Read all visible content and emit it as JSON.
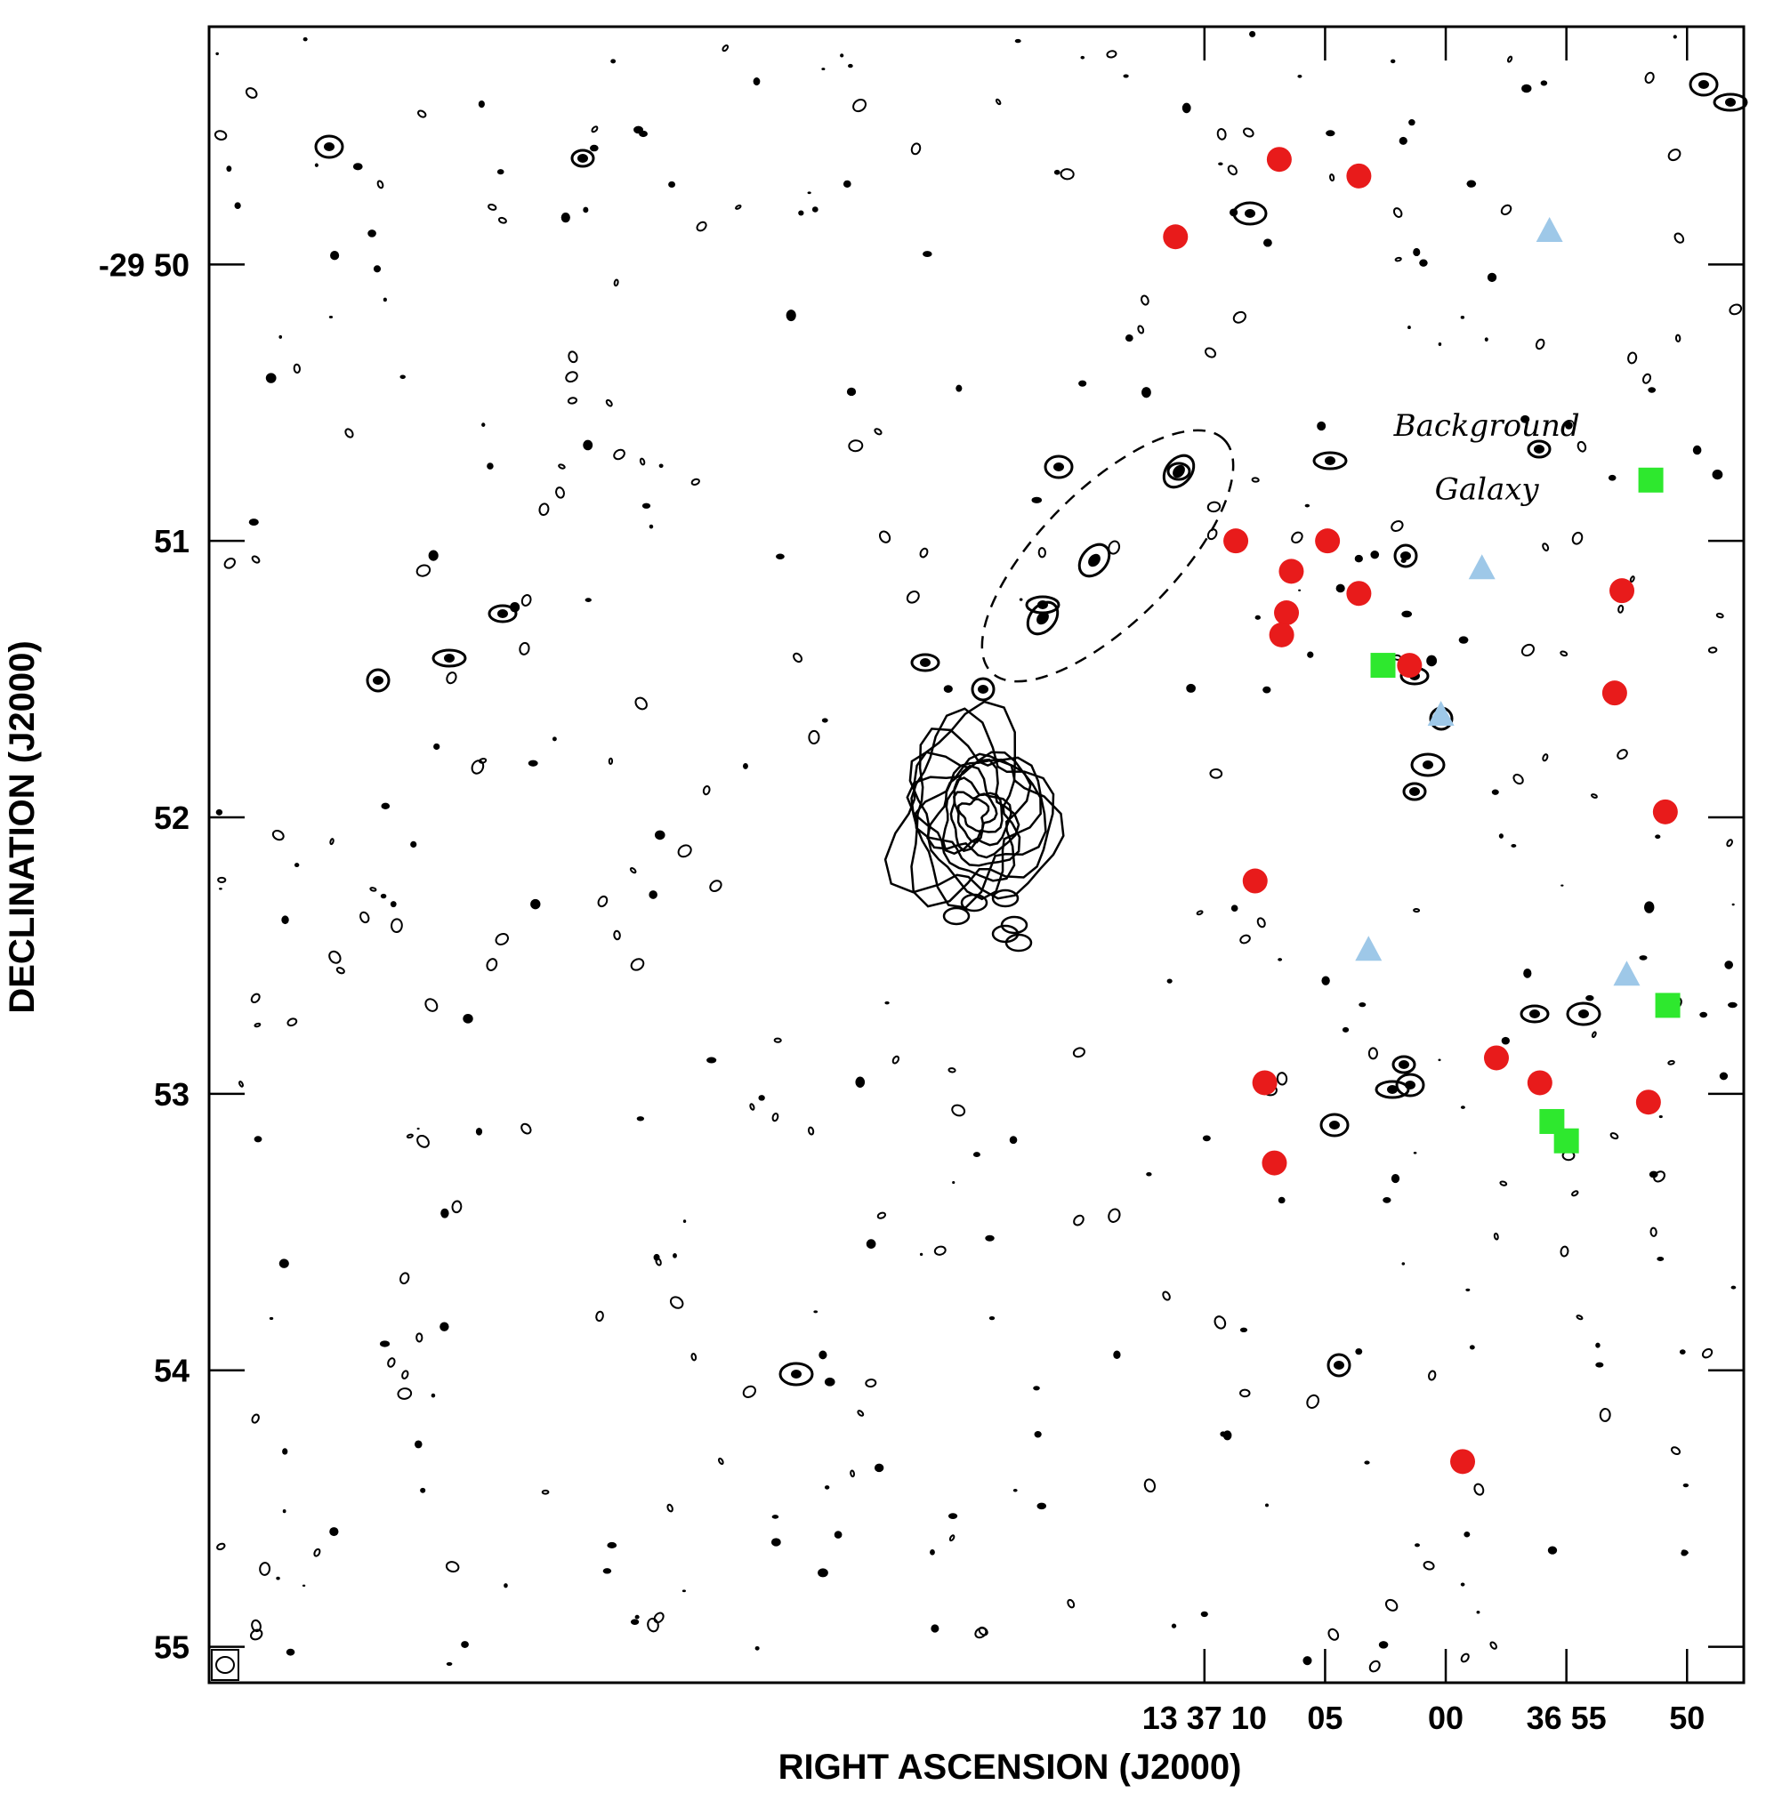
{
  "chart_data": {
    "type": "scatter",
    "title": "",
    "xlabel": "RIGHT ASCENSION (J2000)",
    "ylabel": "DECLINATION (J2000)",
    "x_unit": "seconds of RA after 13h36m",
    "y_unit": "arcminutes below -29d",
    "xlim": [
      111.25,
      47.65
    ],
    "ylim": [
      49.14,
      55.13
    ],
    "x_ticks": [
      {
        "value": 70,
        "label": "13 37 10"
      },
      {
        "value": 65,
        "label": "05"
      },
      {
        "value": 60,
        "label": "00"
      },
      {
        "value": 55,
        "label": "36 55"
      },
      {
        "value": 50,
        "label": "50"
      }
    ],
    "y_ticks": [
      {
        "value": 50,
        "label": "-29 50"
      },
      {
        "value": 51,
        "label": "51"
      },
      {
        "value": 52,
        "label": "52"
      },
      {
        "value": 53,
        "label": "53"
      },
      {
        "value": 54,
        "label": "54"
      },
      {
        "value": 55,
        "label": "55"
      }
    ],
    "annotations": [
      {
        "text": "Background",
        "x": 58.3,
        "y": 50.62
      },
      {
        "text": "Galaxy",
        "x": 58.3,
        "y": 50.85
      }
    ],
    "series": [
      {
        "marker": "circle",
        "color": "#e81b1b",
        "points": [
          [
            71.2,
            49.9
          ],
          [
            66.9,
            49.62
          ],
          [
            63.6,
            49.68
          ],
          [
            68.7,
            51.0
          ],
          [
            66.4,
            51.11
          ],
          [
            66.6,
            51.26
          ],
          [
            66.8,
            51.34
          ],
          [
            64.9,
            51.0
          ],
          [
            63.6,
            51.19
          ],
          [
            61.5,
            51.45
          ],
          [
            67.9,
            52.23
          ],
          [
            67.5,
            52.96
          ],
          [
            67.1,
            53.25
          ],
          [
            57.9,
            52.87
          ],
          [
            56.1,
            52.96
          ],
          [
            53.0,
            51.55
          ],
          [
            52.7,
            51.18
          ],
          [
            50.9,
            51.98
          ],
          [
            51.6,
            53.03
          ],
          [
            59.3,
            54.33
          ]
        ]
      },
      {
        "marker": "square",
        "color": "#2ee82e",
        "points": [
          [
            62.6,
            51.45
          ],
          [
            51.5,
            50.78
          ],
          [
            50.8,
            52.68
          ],
          [
            55.6,
            53.1
          ],
          [
            55.0,
            53.17
          ]
        ]
      },
      {
        "marker": "triangle",
        "color": "#9ec8e8",
        "points": [
          [
            55.7,
            49.88
          ],
          [
            58.5,
            51.1
          ],
          [
            60.2,
            51.63
          ],
          [
            63.2,
            52.48
          ],
          [
            52.5,
            52.57
          ]
        ]
      }
    ]
  }
}
